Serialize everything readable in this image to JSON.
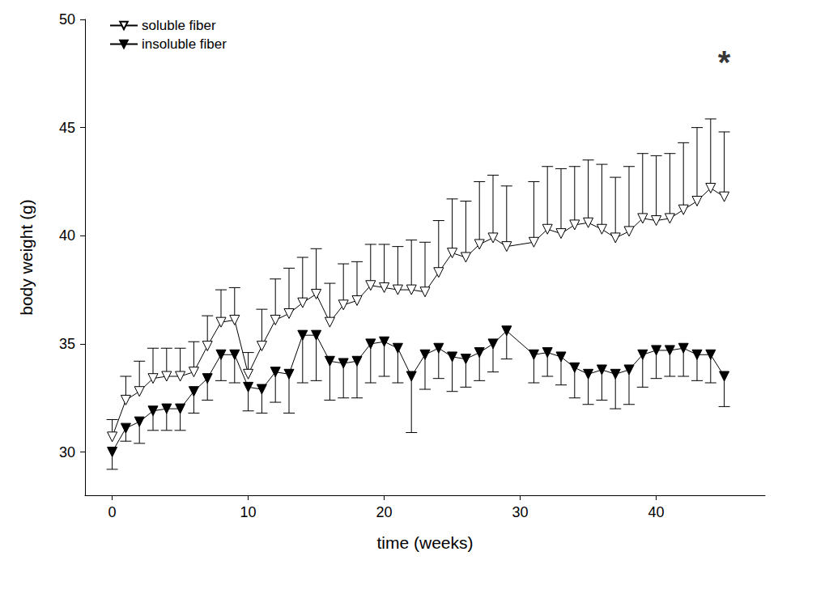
{
  "chart_data": {
    "type": "line",
    "x_label": "time (weeks)",
    "y_label": "body weight (g)",
    "x": [
      0,
      1,
      2,
      3,
      4,
      5,
      6,
      7,
      8,
      9,
      10,
      11,
      12,
      13,
      14,
      15,
      16,
      17,
      18,
      19,
      20,
      21,
      22,
      23,
      24,
      25,
      26,
      27,
      28,
      29,
      31,
      32,
      33,
      34,
      35,
      36,
      37,
      38,
      39,
      40,
      41,
      42,
      43,
      44,
      45
    ],
    "series": [
      {
        "name": "soluble fiber",
        "color": "#000000",
        "marker": "open_triangle_down",
        "line_style": "solid",
        "values": [
          30.7,
          32.4,
          32.8,
          33.4,
          33.5,
          33.5,
          33.7,
          34.9,
          36.0,
          36.1,
          33.6,
          34.9,
          36.1,
          36.4,
          36.9,
          37.3,
          36.0,
          36.8,
          37.0,
          37.7,
          37.6,
          37.5,
          37.5,
          37.4,
          38.3,
          39.2,
          39.0,
          39.6,
          39.9,
          39.5,
          39.7,
          40.3,
          40.1,
          40.5,
          40.6,
          40.3,
          39.9,
          40.2,
          40.8,
          40.7,
          40.8,
          41.2,
          41.6,
          42.2,
          41.8
        ],
        "error_upper": [
          0.8,
          1.1,
          1.4,
          1.4,
          1.3,
          1.3,
          1.4,
          1.4,
          1.5,
          1.5,
          1.0,
          1.7,
          1.9,
          2.1,
          2.1,
          2.1,
          1.8,
          1.9,
          1.8,
          1.9,
          2.0,
          2.0,
          2.3,
          2.3,
          2.4,
          2.5,
          2.6,
          2.9,
          2.9,
          2.8,
          2.8,
          2.9,
          3.0,
          2.7,
          2.9,
          3.0,
          2.8,
          3.0,
          3.0,
          3.0,
          3.0,
          3.1,
          3.4,
          3.2,
          3.0
        ]
      },
      {
        "name": "insoluble fiber",
        "color": "#000000",
        "marker": "filled_triangle_down",
        "line_style": "solid",
        "values": [
          30.0,
          31.1,
          31.4,
          31.9,
          32.0,
          32.0,
          32.8,
          33.4,
          34.5,
          34.5,
          33.0,
          32.9,
          33.7,
          33.6,
          35.4,
          35.4,
          34.2,
          34.1,
          34.2,
          35.0,
          35.1,
          34.8,
          33.5,
          34.5,
          34.8,
          34.4,
          34.3,
          34.6,
          35.0,
          35.6,
          34.5,
          34.6,
          34.4,
          33.9,
          33.6,
          33.8,
          33.6,
          33.8,
          34.5,
          34.7,
          34.7,
          34.8,
          34.5,
          34.5,
          33.5
        ],
        "error_lower": [
          0.8,
          0.6,
          1.0,
          0.9,
          1.0,
          1.0,
          1.0,
          1.0,
          1.2,
          1.3,
          1.1,
          1.1,
          1.4,
          1.8,
          2.2,
          2.1,
          1.8,
          1.6,
          1.7,
          1.8,
          1.6,
          1.6,
          2.6,
          1.6,
          1.4,
          1.6,
          1.3,
          1.3,
          1.3,
          1.3,
          1.3,
          1.1,
          1.3,
          1.4,
          1.4,
          1.4,
          1.6,
          1.6,
          1.5,
          1.3,
          1.2,
          1.3,
          1.2,
          1.3,
          1.4
        ]
      }
    ],
    "annotations": [
      {
        "text": "*",
        "x": 45,
        "y": 48.0
      }
    ],
    "xlim": [
      -2,
      48
    ],
    "xticks": [
      0,
      10,
      20,
      30,
      40
    ],
    "ylim": [
      28,
      50
    ],
    "yticks": [
      30,
      35,
      40,
      45,
      50
    ],
    "grid": false,
    "legend": "upper left"
  }
}
